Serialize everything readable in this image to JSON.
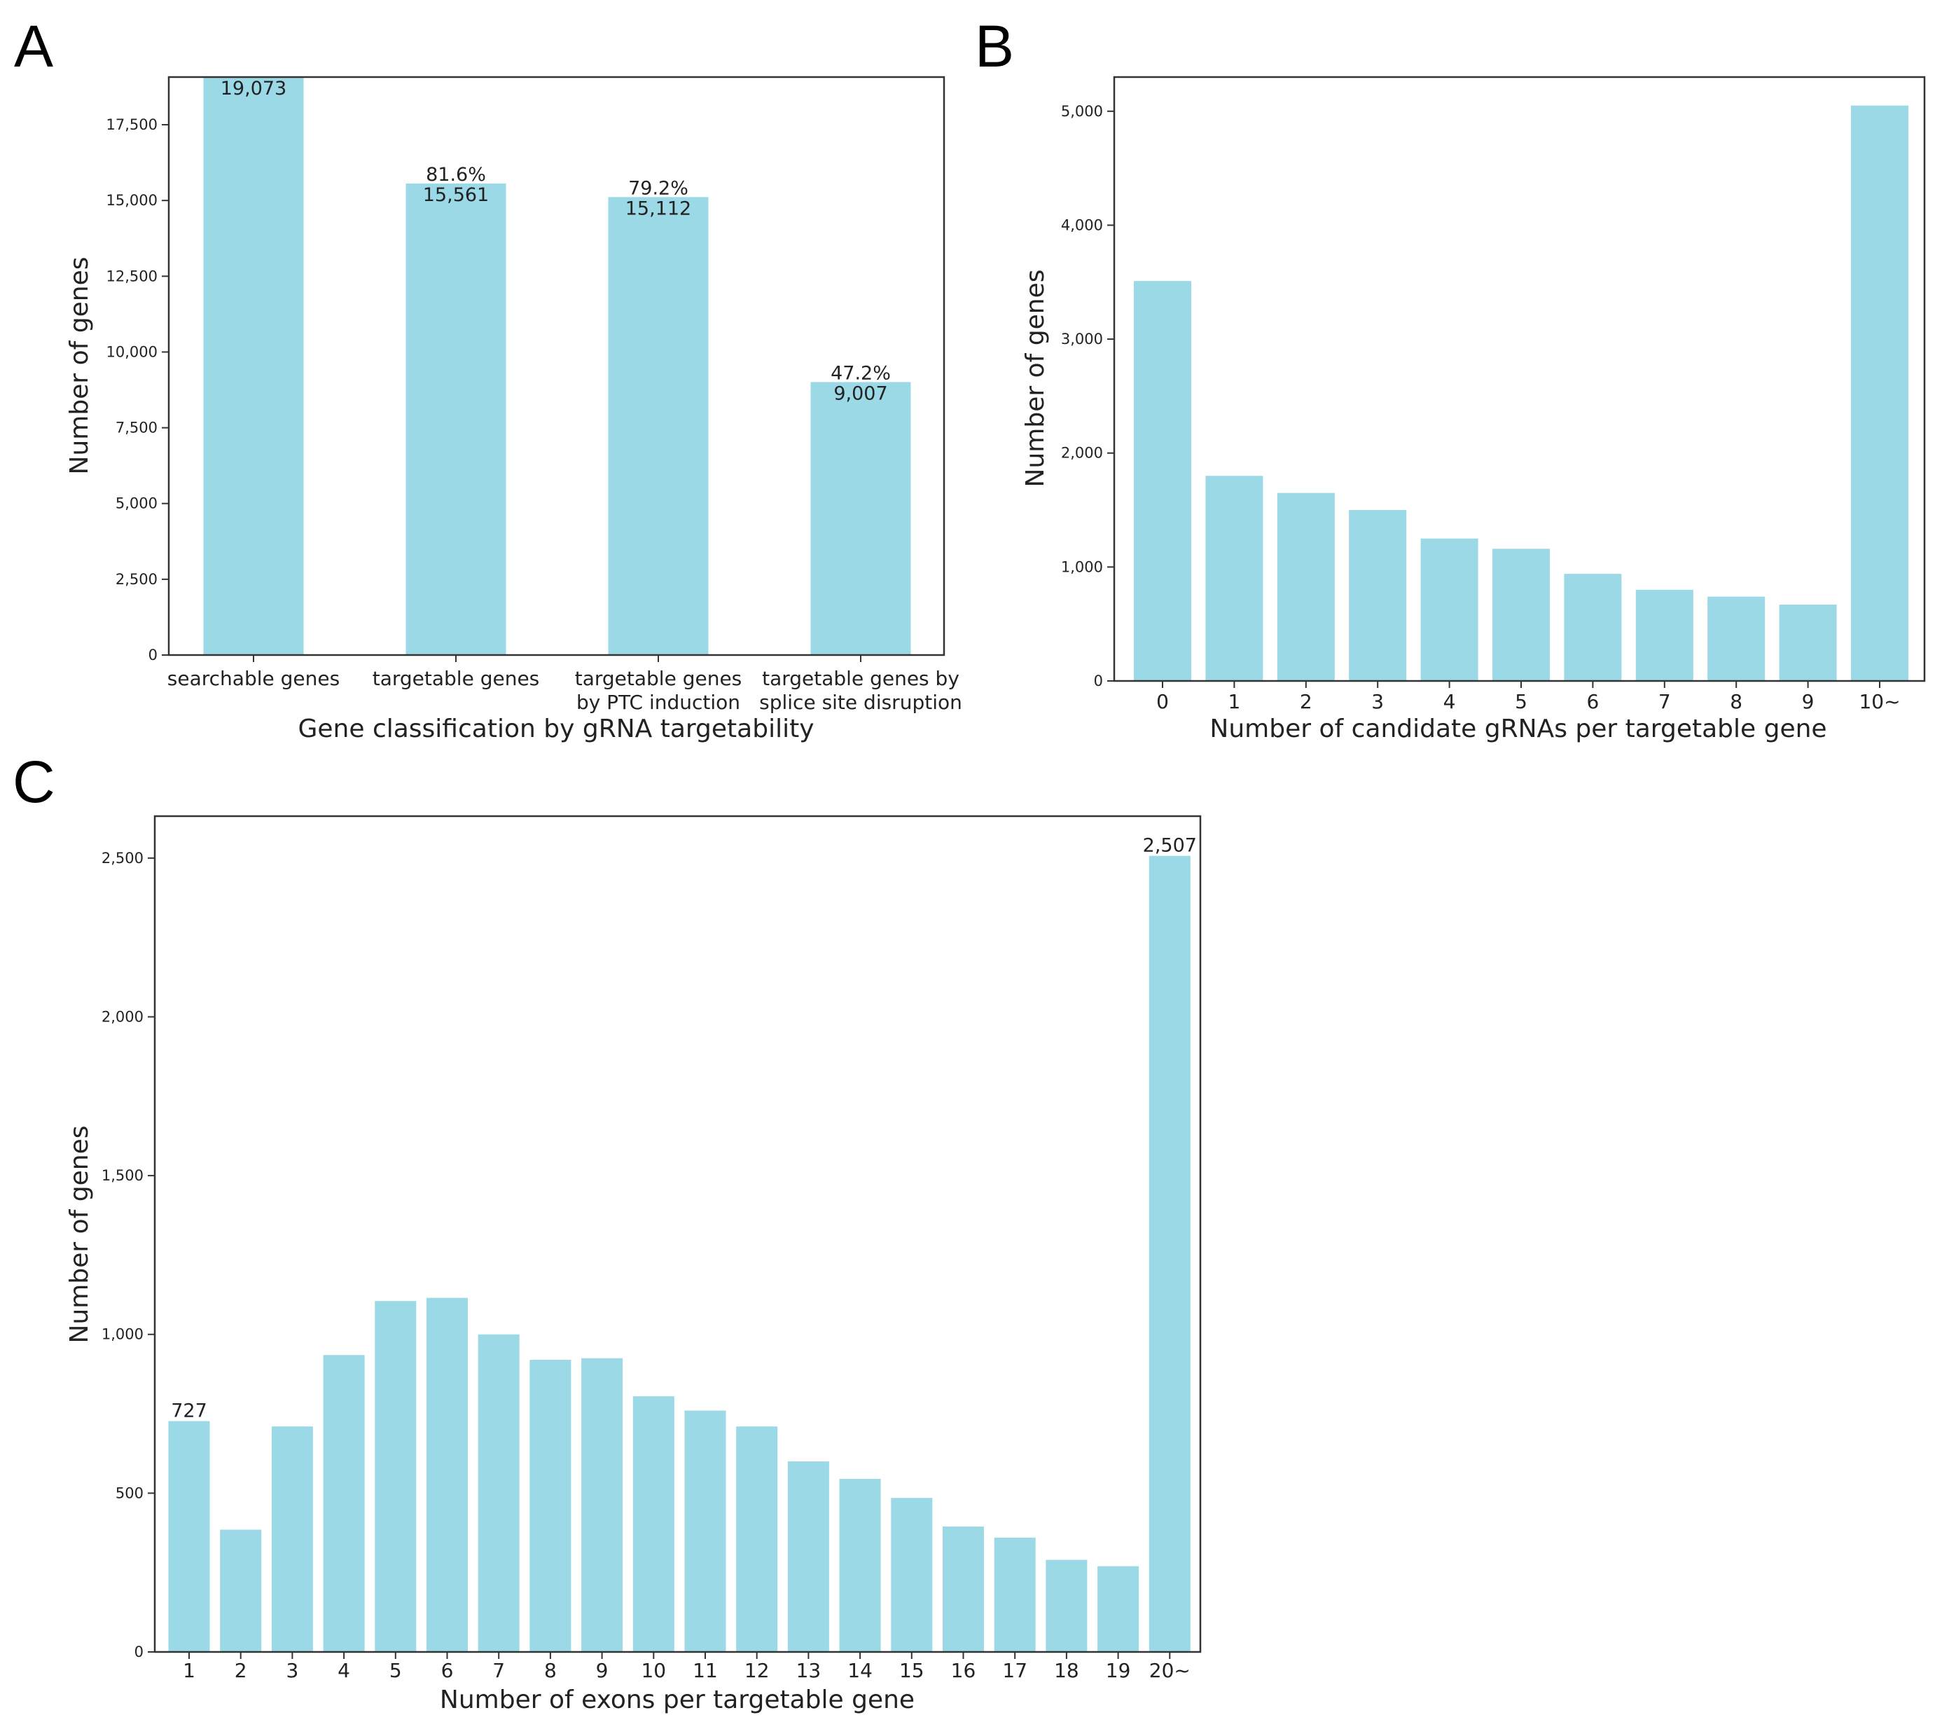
{
  "colors": {
    "bar": "#9ad9e5",
    "axis": "#333333",
    "text": "#222222"
  },
  "chart_data": [
    {
      "id": "A",
      "panel_label": "A",
      "type": "bar",
      "categories": [
        "searchable genes",
        "targetable genes",
        "targetable genes\nby PTC induction",
        "targetable genes by\nsplice site disruption"
      ],
      "values": [
        19073,
        15561,
        15112,
        9007
      ],
      "value_labels": [
        "19,073",
        "15,561",
        "15,112",
        "9,007"
      ],
      "percent_labels": [
        null,
        "81.6%",
        "79.2%",
        "47.2%"
      ],
      "xlabel": "Gene classification by gRNA targetability",
      "ylabel": "Number of genes",
      "ylim": [
        0,
        19073
      ],
      "yticks": [
        0,
        2500,
        5000,
        7500,
        10000,
        12500,
        15000,
        17500
      ],
      "ytick_labels": [
        "0",
        "2,500",
        "5,000",
        "7,500",
        "10,000",
        "12,500",
        "15,000",
        "17,500"
      ]
    },
    {
      "id": "B",
      "panel_label": "B",
      "type": "bar",
      "categories": [
        "0",
        "1",
        "2",
        "3",
        "4",
        "5",
        "6",
        "7",
        "8",
        "9",
        "10~"
      ],
      "values": [
        3510,
        1800,
        1650,
        1500,
        1250,
        1160,
        940,
        800,
        740,
        670,
        5050
      ],
      "xlabel": "Number of candidate gRNAs per targetable gene",
      "ylabel": "Number of genes",
      "ylim": [
        0,
        5300
      ],
      "yticks": [
        0,
        1000,
        2000,
        3000,
        4000,
        5000
      ],
      "ytick_labels": [
        "0",
        "1,000",
        "2,000",
        "3,000",
        "4,000",
        "5,000"
      ]
    },
    {
      "id": "C",
      "panel_label": "C",
      "type": "bar",
      "categories": [
        "1",
        "2",
        "3",
        "4",
        "5",
        "6",
        "7",
        "8",
        "9",
        "10",
        "11",
        "12",
        "13",
        "14",
        "15",
        "16",
        "17",
        "18",
        "19",
        "20~"
      ],
      "values": [
        727,
        385,
        710,
        935,
        1105,
        1115,
        1000,
        920,
        925,
        805,
        760,
        710,
        600,
        545,
        485,
        395,
        360,
        290,
        270,
        2507
      ],
      "value_labels": [
        "727",
        "",
        "",
        "",
        "",
        "",
        "",
        "",
        "",
        "",
        "",
        "",
        "",
        "",
        "",
        "",
        "",
        "",
        "",
        "2,507"
      ],
      "xlabel": "Number of exons per targetable gene",
      "ylabel": "Number of genes",
      "ylim": [
        0,
        2632
      ],
      "yticks": [
        0,
        500,
        1000,
        1500,
        2000,
        2500
      ],
      "ytick_labels": [
        "0",
        "500",
        "1,000",
        "1,500",
        "2,000",
        "2,500"
      ]
    }
  ]
}
